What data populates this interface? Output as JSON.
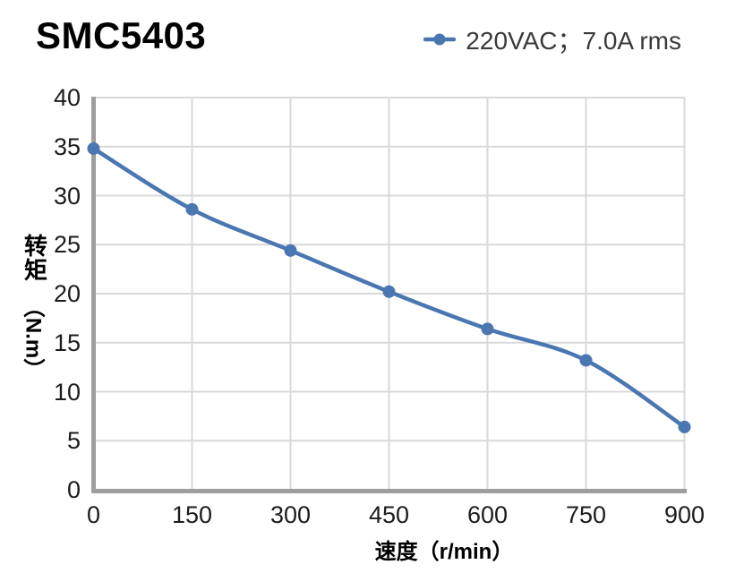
{
  "header": {
    "title": "SMC5403"
  },
  "legend": {
    "label": "220VAC；7.0A rms",
    "marker_color": "#4a76b1"
  },
  "chart_data": {
    "type": "line",
    "title": "SMC5403",
    "x": [
      0,
      150,
      300,
      450,
      600,
      750,
      900
    ],
    "series": [
      {
        "name": "220VAC；7.0A rms",
        "color": "#4a76b1",
        "values": [
          34.8,
          28.6,
          24.4,
          20.2,
          16.4,
          13.2,
          6.4
        ]
      }
    ],
    "xlabel": "速度（r/min）",
    "ylabel": "转矩（N.m）",
    "ylabel_cjk": "转矩",
    "ylabel_unit": "（N.m）",
    "xlim": [
      0,
      900
    ],
    "ylim": [
      0,
      40
    ],
    "x_ticks": [
      0,
      150,
      300,
      450,
      600,
      750,
      900
    ],
    "y_ticks": [
      0,
      5,
      10,
      15,
      20,
      25,
      30,
      35,
      40
    ],
    "grid": true,
    "legend_position": "top-right",
    "colors": {
      "line": "#4a76b1",
      "grid": "#d9d9d9",
      "spine": "#9e9e9e",
      "tick_text": "#1c1c1c",
      "title_text": "#000000",
      "legend_text": "#3a3a3a"
    }
  }
}
